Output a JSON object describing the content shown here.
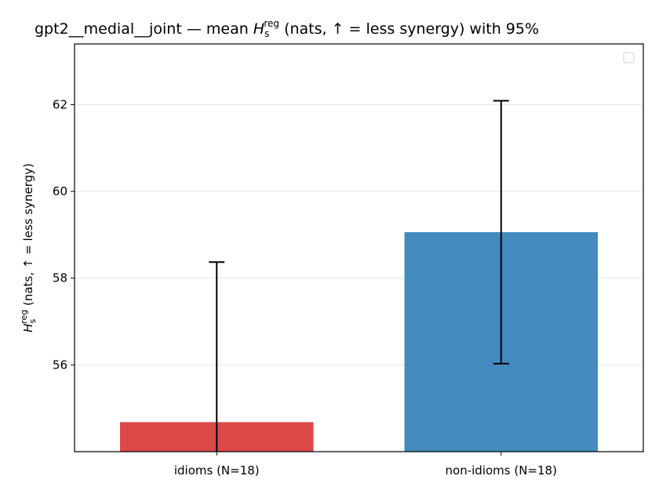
{
  "chart_data": {
    "type": "bar",
    "title": {
      "prefix": "gpt2__medial__joint — mean ",
      "symbol": "H",
      "subscript": "s",
      "superscript": "reg",
      "suffix": " (nats, ↑ = less synergy) with 95%"
    },
    "ylabel": {
      "symbol": "H",
      "subscript": "s",
      "superscript": "reg",
      "suffix": " (nats, ↑ = less synergy)"
    },
    "xlabel": "",
    "categories": [
      "idioms (N=18)",
      "non-idioms (N=18)"
    ],
    "values": [
      54.68,
      59.06
    ],
    "error_bars": [
      {
        "low": 53.6,
        "high": 58.37
      },
      {
        "low": 56.03,
        "high": 62.09
      }
    ],
    "colors": [
      "#dc4747",
      "#438bbe"
    ],
    "ylim": [
      54.0,
      63.4
    ],
    "yticks": [
      56,
      58,
      60,
      62
    ],
    "grid": "horizontal",
    "legend": {
      "placement": "top-right",
      "entries": []
    }
  }
}
